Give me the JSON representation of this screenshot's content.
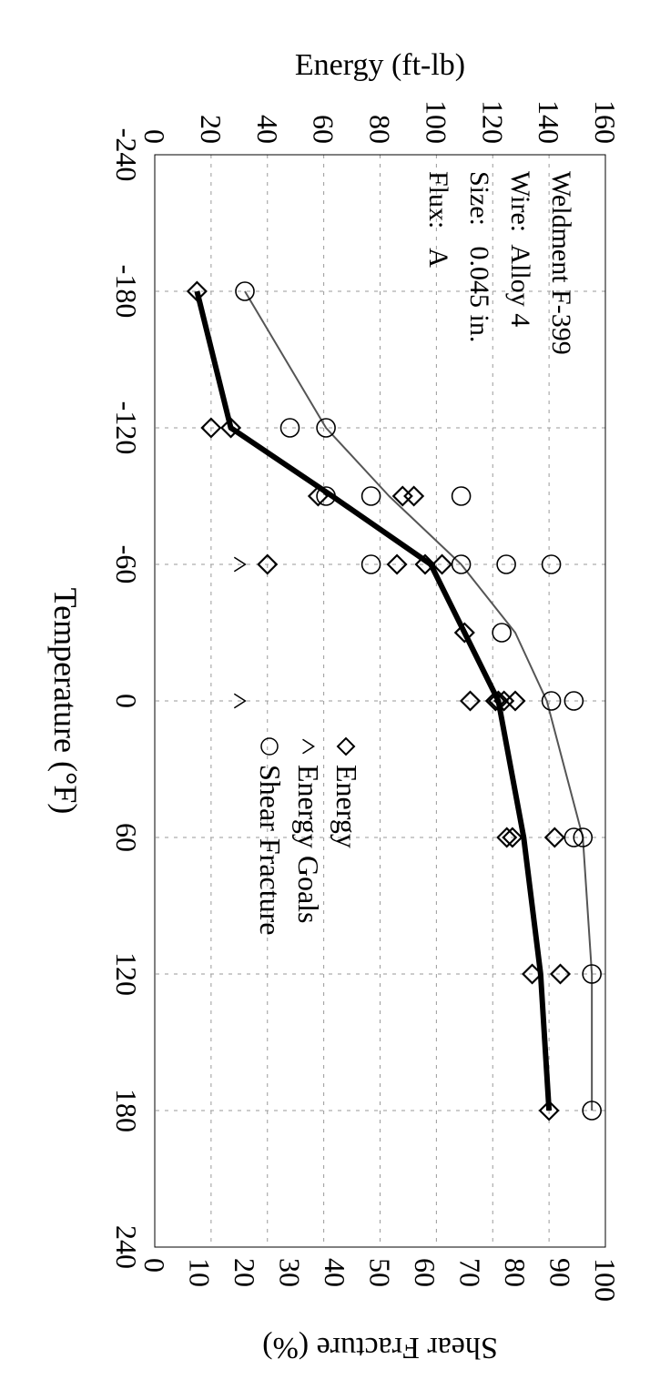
{
  "chart_data": {
    "type": "scatter",
    "xlabel": "Temperature (°F)",
    "ylabel_left": "Energy (ft-lb)",
    "ylabel_right": "Shear Fracture (%)",
    "xlim": [
      -240,
      240
    ],
    "ylim_left": [
      0,
      160
    ],
    "ylim_right": [
      0,
      100
    ],
    "x_ticks": [
      "-240",
      "-180",
      "-120",
      "-60",
      "0",
      "60",
      "120",
      "180",
      "240"
    ],
    "y_left_ticks": [
      "0",
      "20",
      "40",
      "60",
      "80",
      "100",
      "120",
      "140",
      "160"
    ],
    "y_right_ticks": [
      "0",
      "10",
      "20",
      "30",
      "40",
      "50",
      "60",
      "70",
      "80",
      "90",
      "100"
    ],
    "grid": true,
    "orientation": "rotated 90° clockwise",
    "legend_placement": "center",
    "annotation": [
      "Weldment F-399",
      "Wire:  Alloy 4",
      "Size:   0.045 in.",
      "Flux:   A"
    ],
    "series": [
      {
        "name": "Energy",
        "marker": "diamond",
        "axis": "left",
        "x": [
          -180,
          -120,
          -120,
          -90,
          -90,
          -90,
          -60,
          -60,
          -60,
          -60,
          -30,
          0,
          0,
          0,
          0,
          0,
          60,
          60,
          60,
          120,
          120,
          180
        ],
        "y": [
          15,
          20,
          27,
          58,
          88,
          92,
          40,
          86,
          96,
          102,
          110,
          112,
          121,
          122,
          124,
          128,
          125,
          127,
          142,
          134,
          144,
          140
        ]
      },
      {
        "name": "Energy Goals",
        "marker": "caret",
        "axis": "left",
        "x": [
          -60,
          0
        ],
        "y": [
          30,
          30
        ]
      },
      {
        "name": "Shear Fracture",
        "marker": "circle",
        "axis": "right",
        "x": [
          -180,
          -120,
          -120,
          -90,
          -90,
          -90,
          -60,
          -60,
          -60,
          -60,
          -30,
          0,
          0,
          60,
          60,
          120,
          180
        ],
        "y": [
          20,
          30,
          38,
          38,
          48,
          68,
          48,
          68,
          78,
          88,
          77,
          88,
          93,
          93,
          95,
          97,
          97
        ]
      }
    ],
    "fit_lines": [
      {
        "series": "Energy",
        "style": "thick",
        "axis": "left",
        "x": [
          -180,
          -120,
          -90,
          -60,
          -30,
          0,
          60,
          120,
          180
        ],
        "y": [
          15,
          27,
          63,
          98,
          110,
          122,
          131,
          137,
          140
        ]
      },
      {
        "series": "Shear Fracture",
        "style": "thin",
        "axis": "right",
        "x": [
          -180,
          -120,
          -90,
          -60,
          -30,
          0,
          60,
          120,
          180
        ],
        "y": [
          20,
          38,
          52,
          68,
          80,
          87,
          95,
          97,
          97
        ]
      }
    ]
  }
}
